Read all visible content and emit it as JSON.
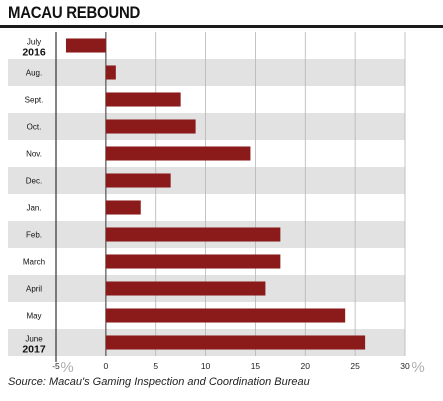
{
  "chart_data": {
    "type": "bar",
    "orientation": "horizontal",
    "title": "MACAU REBOUND",
    "categories": [
      "July",
      "Aug.",
      "Sept.",
      "Oct.",
      "Nov.",
      "Dec.",
      "Jan.",
      "Feb.",
      "March",
      "April",
      "May",
      "June"
    ],
    "year_labels": {
      "July": "2016",
      "June": "2017"
    },
    "values": [
      -4,
      1,
      7.5,
      9,
      14.5,
      6.5,
      3.5,
      17.5,
      17.5,
      16,
      24,
      26
    ],
    "xlim": [
      -5,
      30
    ],
    "x_ticks": [
      -5,
      0,
      5,
      10,
      15,
      20,
      25,
      30
    ],
    "x_unit": "%",
    "grid": true,
    "bar_color": "#8b1a1a",
    "alt_band_color": "#e2e2e2"
  },
  "source": "Source: Macau's Gaming Inspection and Coordination Bureau"
}
